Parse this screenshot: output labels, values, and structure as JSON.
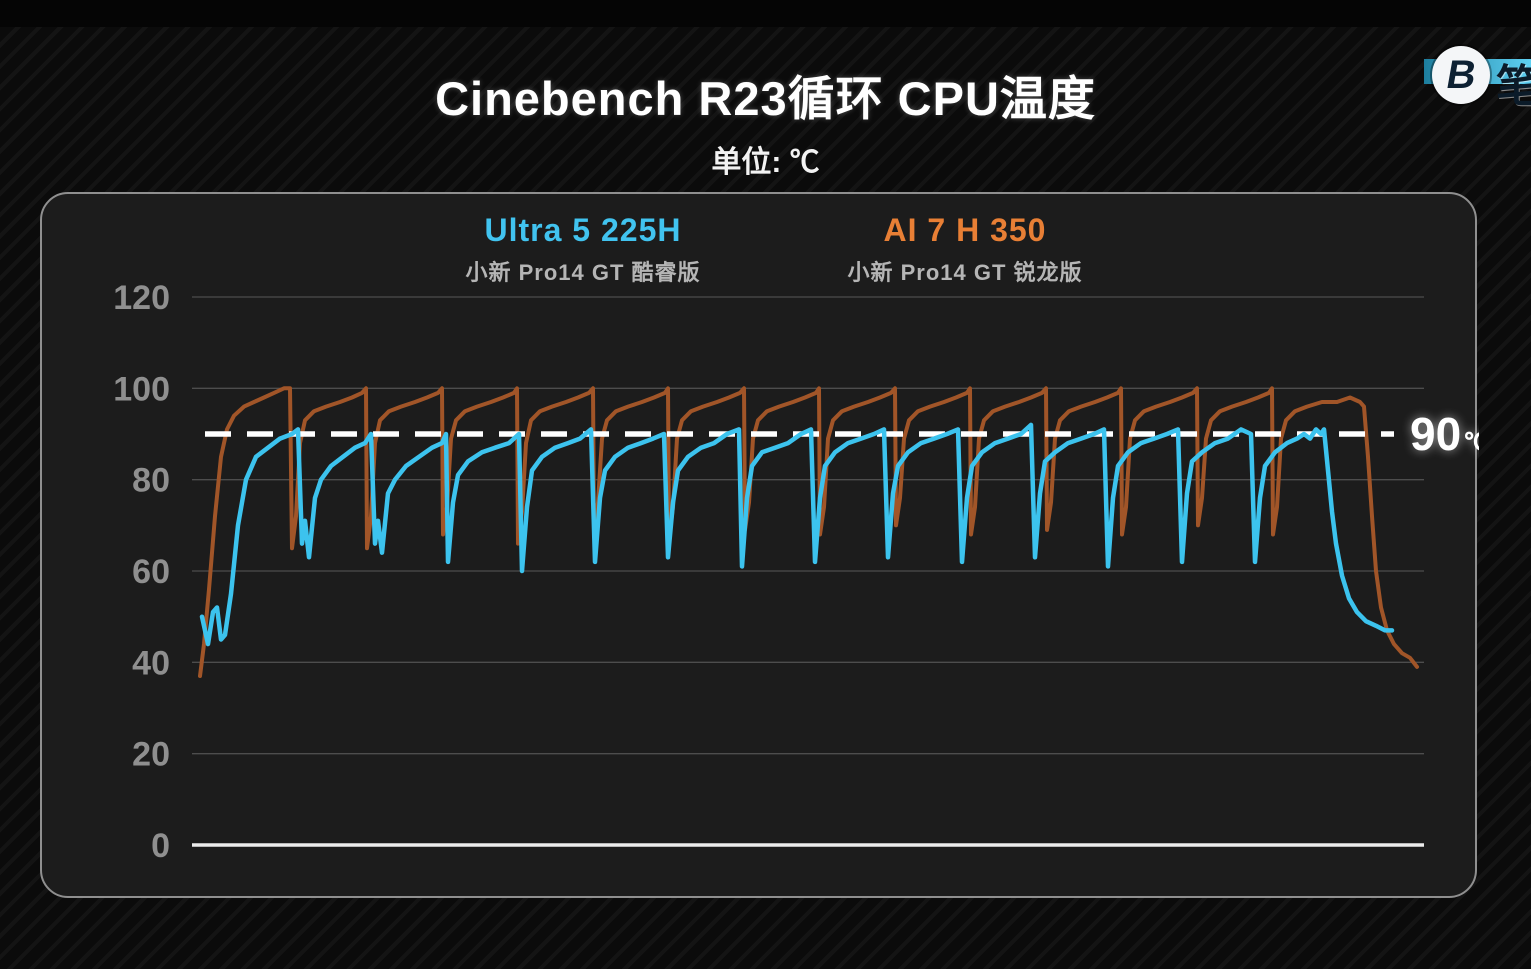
{
  "header": {
    "title": "Cinebench R23循环 CPU温度",
    "unit_label": "单位: ℃"
  },
  "logo": {
    "monogram": "B",
    "partial_text": "笔"
  },
  "legend": [
    {
      "name": "Ultra 5 225H",
      "device": "小新 Pro14 GT 酷睿版",
      "color": "#41c3ef"
    },
    {
      "name": "AI 7 H 350",
      "device": "小新 Pro14 GT 锐龙版",
      "color": "#e87f35"
    }
  ],
  "chart_data": {
    "type": "line",
    "title": "Cinebench R23循环 CPU温度",
    "ylabel": "°C",
    "xlabel": "",
    "x_note": "time during Cinebench R23 loop (x axis unlabeled; x values are plot-pixel offsets 0-1232)",
    "ylim": [
      0,
      120
    ],
    "yticks": [
      0,
      20,
      40,
      60,
      80,
      100,
      120
    ],
    "grid": true,
    "legend_position": "top",
    "threshold": {
      "value": 90,
      "label_value": "90",
      "label_unit": "℃",
      "style": "white dashed with glow"
    },
    "series": [
      {
        "name": "Ultra 5 225H",
        "color": "#3cc3ee",
        "width": 4.5,
        "points": [
          [
            10,
            50
          ],
          [
            13,
            47
          ],
          [
            16,
            44
          ],
          [
            21,
            51
          ],
          [
            25,
            52
          ],
          [
            29,
            45
          ],
          [
            33,
            46
          ],
          [
            39,
            55
          ],
          [
            46,
            70
          ],
          [
            54,
            80
          ],
          [
            64,
            85
          ],
          [
            76,
            87
          ],
          [
            88,
            89
          ],
          [
            100,
            90
          ],
          [
            106,
            91
          ],
          [
            110,
            66
          ],
          [
            113,
            71
          ],
          [
            117,
            63
          ],
          [
            123,
            76
          ],
          [
            129,
            80
          ],
          [
            139,
            83
          ],
          [
            151,
            85
          ],
          [
            163,
            87
          ],
          [
            173,
            88
          ],
          [
            179,
            90
          ],
          [
            183,
            66
          ],
          [
            186,
            71
          ],
          [
            190,
            64
          ],
          [
            196,
            77
          ],
          [
            203,
            80
          ],
          [
            214,
            83
          ],
          [
            227,
            85
          ],
          [
            240,
            87
          ],
          [
            250,
            88
          ],
          [
            254,
            90
          ],
          [
            256,
            62
          ],
          [
            261,
            75
          ],
          [
            266,
            81
          ],
          [
            276,
            84
          ],
          [
            290,
            86
          ],
          [
            303,
            87
          ],
          [
            317,
            88
          ],
          [
            327,
            90
          ],
          [
            330,
            60
          ],
          [
            335,
            74
          ],
          [
            340,
            82
          ],
          [
            350,
            85
          ],
          [
            363,
            87
          ],
          [
            376,
            88
          ],
          [
            388,
            89
          ],
          [
            399,
            91
          ],
          [
            403,
            62
          ],
          [
            408,
            76
          ],
          [
            413,
            82
          ],
          [
            423,
            85
          ],
          [
            436,
            87
          ],
          [
            449,
            88
          ],
          [
            461,
            89
          ],
          [
            472,
            90
          ],
          [
            476,
            63
          ],
          [
            481,
            75
          ],
          [
            486,
            82
          ],
          [
            496,
            85
          ],
          [
            509,
            87
          ],
          [
            522,
            88
          ],
          [
            535,
            90
          ],
          [
            547,
            91
          ],
          [
            550,
            61
          ],
          [
            555,
            76
          ],
          [
            560,
            83
          ],
          [
            570,
            86
          ],
          [
            583,
            87
          ],
          [
            596,
            88
          ],
          [
            609,
            90
          ],
          [
            619,
            91
          ],
          [
            623,
            62
          ],
          [
            628,
            76
          ],
          [
            633,
            83
          ],
          [
            643,
            86
          ],
          [
            656,
            88
          ],
          [
            669,
            89
          ],
          [
            682,
            90
          ],
          [
            692,
            91
          ],
          [
            696,
            63
          ],
          [
            701,
            77
          ],
          [
            706,
            83
          ],
          [
            716,
            86
          ],
          [
            729,
            88
          ],
          [
            742,
            89
          ],
          [
            755,
            90
          ],
          [
            766,
            91
          ],
          [
            770,
            62
          ],
          [
            775,
            76
          ],
          [
            780,
            83
          ],
          [
            790,
            86
          ],
          [
            803,
            88
          ],
          [
            816,
            89
          ],
          [
            829,
            90
          ],
          [
            839,
            92
          ],
          [
            843,
            63
          ],
          [
            848,
            77
          ],
          [
            853,
            84
          ],
          [
            863,
            86
          ],
          [
            876,
            88
          ],
          [
            889,
            89
          ],
          [
            902,
            90
          ],
          [
            912,
            91
          ],
          [
            916,
            61
          ],
          [
            921,
            76
          ],
          [
            926,
            83
          ],
          [
            936,
            86
          ],
          [
            949,
            88
          ],
          [
            962,
            89
          ],
          [
            975,
            90
          ],
          [
            986,
            91
          ],
          [
            990,
            62
          ],
          [
            995,
            77
          ],
          [
            1000,
            84
          ],
          [
            1010,
            86
          ],
          [
            1023,
            88
          ],
          [
            1036,
            89
          ],
          [
            1049,
            91
          ],
          [
            1059,
            90
          ],
          [
            1063,
            62
          ],
          [
            1068,
            76
          ],
          [
            1073,
            83
          ],
          [
            1083,
            86
          ],
          [
            1095,
            88
          ],
          [
            1105,
            89
          ],
          [
            1112,
            90
          ],
          [
            1118,
            89
          ],
          [
            1124,
            91
          ],
          [
            1129,
            90
          ],
          [
            1132,
            91
          ],
          [
            1136,
            82
          ],
          [
            1140,
            73
          ],
          [
            1144,
            66
          ],
          [
            1150,
            59
          ],
          [
            1157,
            54
          ],
          [
            1165,
            51
          ],
          [
            1174,
            49
          ],
          [
            1184,
            48
          ],
          [
            1193,
            47
          ],
          [
            1200,
            47
          ]
        ]
      },
      {
        "name": "AI 7 H 350",
        "color": "#a15528",
        "width": 4,
        "points": [
          [
            8,
            37
          ],
          [
            12,
            44
          ],
          [
            17,
            56
          ],
          [
            23,
            72
          ],
          [
            29,
            85
          ],
          [
            35,
            91
          ],
          [
            42,
            94
          ],
          [
            52,
            96
          ],
          [
            62,
            97
          ],
          [
            72,
            98
          ],
          [
            82,
            99
          ],
          [
            92,
            100
          ],
          [
            98,
            100
          ],
          [
            100,
            65
          ],
          [
            104,
            72
          ],
          [
            108,
            88
          ],
          [
            113,
            93
          ],
          [
            122,
            95
          ],
          [
            134,
            96
          ],
          [
            148,
            97
          ],
          [
            160,
            98
          ],
          [
            170,
            99
          ],
          [
            174,
            100
          ],
          [
            175,
            65
          ],
          [
            179,
            72
          ],
          [
            183,
            88
          ],
          [
            188,
            93
          ],
          [
            197,
            95
          ],
          [
            209,
            96
          ],
          [
            223,
            97
          ],
          [
            235,
            98
          ],
          [
            246,
            99
          ],
          [
            250,
            100
          ],
          [
            251,
            68
          ],
          [
            255,
            74
          ],
          [
            259,
            89
          ],
          [
            264,
            93
          ],
          [
            273,
            95
          ],
          [
            285,
            96
          ],
          [
            299,
            97
          ],
          [
            311,
            98
          ],
          [
            322,
            99
          ],
          [
            325,
            100
          ],
          [
            326,
            66
          ],
          [
            330,
            73
          ],
          [
            334,
            88
          ],
          [
            339,
            93
          ],
          [
            348,
            95
          ],
          [
            360,
            96
          ],
          [
            374,
            97
          ],
          [
            386,
            98
          ],
          [
            397,
            99
          ],
          [
            401,
            100
          ],
          [
            402,
            69
          ],
          [
            406,
            75
          ],
          [
            410,
            89
          ],
          [
            415,
            93
          ],
          [
            424,
            95
          ],
          [
            436,
            96
          ],
          [
            450,
            97
          ],
          [
            462,
            98
          ],
          [
            473,
            99
          ],
          [
            476,
            100
          ],
          [
            477,
            67
          ],
          [
            481,
            74
          ],
          [
            485,
            89
          ],
          [
            490,
            93
          ],
          [
            499,
            95
          ],
          [
            511,
            96
          ],
          [
            525,
            97
          ],
          [
            537,
            98
          ],
          [
            548,
            99
          ],
          [
            552,
            100
          ],
          [
            553,
            69
          ],
          [
            557,
            75
          ],
          [
            561,
            89
          ],
          [
            566,
            93
          ],
          [
            575,
            95
          ],
          [
            587,
            96
          ],
          [
            601,
            97
          ],
          [
            613,
            98
          ],
          [
            624,
            99
          ],
          [
            627,
            100
          ],
          [
            628,
            68
          ],
          [
            632,
            74
          ],
          [
            636,
            89
          ],
          [
            641,
            93
          ],
          [
            650,
            95
          ],
          [
            662,
            96
          ],
          [
            676,
            97
          ],
          [
            688,
            98
          ],
          [
            699,
            99
          ],
          [
            703,
            100
          ],
          [
            704,
            70
          ],
          [
            708,
            76
          ],
          [
            712,
            89
          ],
          [
            717,
            93
          ],
          [
            726,
            95
          ],
          [
            738,
            96
          ],
          [
            752,
            97
          ],
          [
            764,
            98
          ],
          [
            775,
            99
          ],
          [
            778,
            100
          ],
          [
            779,
            68
          ],
          [
            783,
            74
          ],
          [
            787,
            89
          ],
          [
            792,
            93
          ],
          [
            801,
            95
          ],
          [
            813,
            96
          ],
          [
            827,
            97
          ],
          [
            839,
            98
          ],
          [
            850,
            99
          ],
          [
            854,
            100
          ],
          [
            855,
            69
          ],
          [
            859,
            75
          ],
          [
            863,
            89
          ],
          [
            868,
            93
          ],
          [
            877,
            95
          ],
          [
            889,
            96
          ],
          [
            903,
            97
          ],
          [
            915,
            98
          ],
          [
            926,
            99
          ],
          [
            929,
            100
          ],
          [
            930,
            68
          ],
          [
            934,
            74
          ],
          [
            938,
            89
          ],
          [
            943,
            93
          ],
          [
            952,
            95
          ],
          [
            964,
            96
          ],
          [
            978,
            97
          ],
          [
            990,
            98
          ],
          [
            1001,
            99
          ],
          [
            1005,
            100
          ],
          [
            1006,
            70
          ],
          [
            1010,
            76
          ],
          [
            1014,
            89
          ],
          [
            1019,
            93
          ],
          [
            1028,
            95
          ],
          [
            1040,
            96
          ],
          [
            1054,
            97
          ],
          [
            1066,
            98
          ],
          [
            1077,
            99
          ],
          [
            1080,
            100
          ],
          [
            1081,
            68
          ],
          [
            1085,
            74
          ],
          [
            1089,
            89
          ],
          [
            1094,
            93
          ],
          [
            1103,
            95
          ],
          [
            1115,
            96
          ],
          [
            1130,
            97
          ],
          [
            1145,
            97
          ],
          [
            1158,
            98
          ],
          [
            1168,
            97
          ],
          [
            1172,
            96
          ],
          [
            1176,
            85
          ],
          [
            1180,
            72
          ],
          [
            1184,
            60
          ],
          [
            1189,
            52
          ],
          [
            1195,
            47
          ],
          [
            1202,
            44
          ],
          [
            1210,
            42
          ],
          [
            1218,
            41
          ],
          [
            1225,
            39
          ]
        ]
      }
    ]
  }
}
